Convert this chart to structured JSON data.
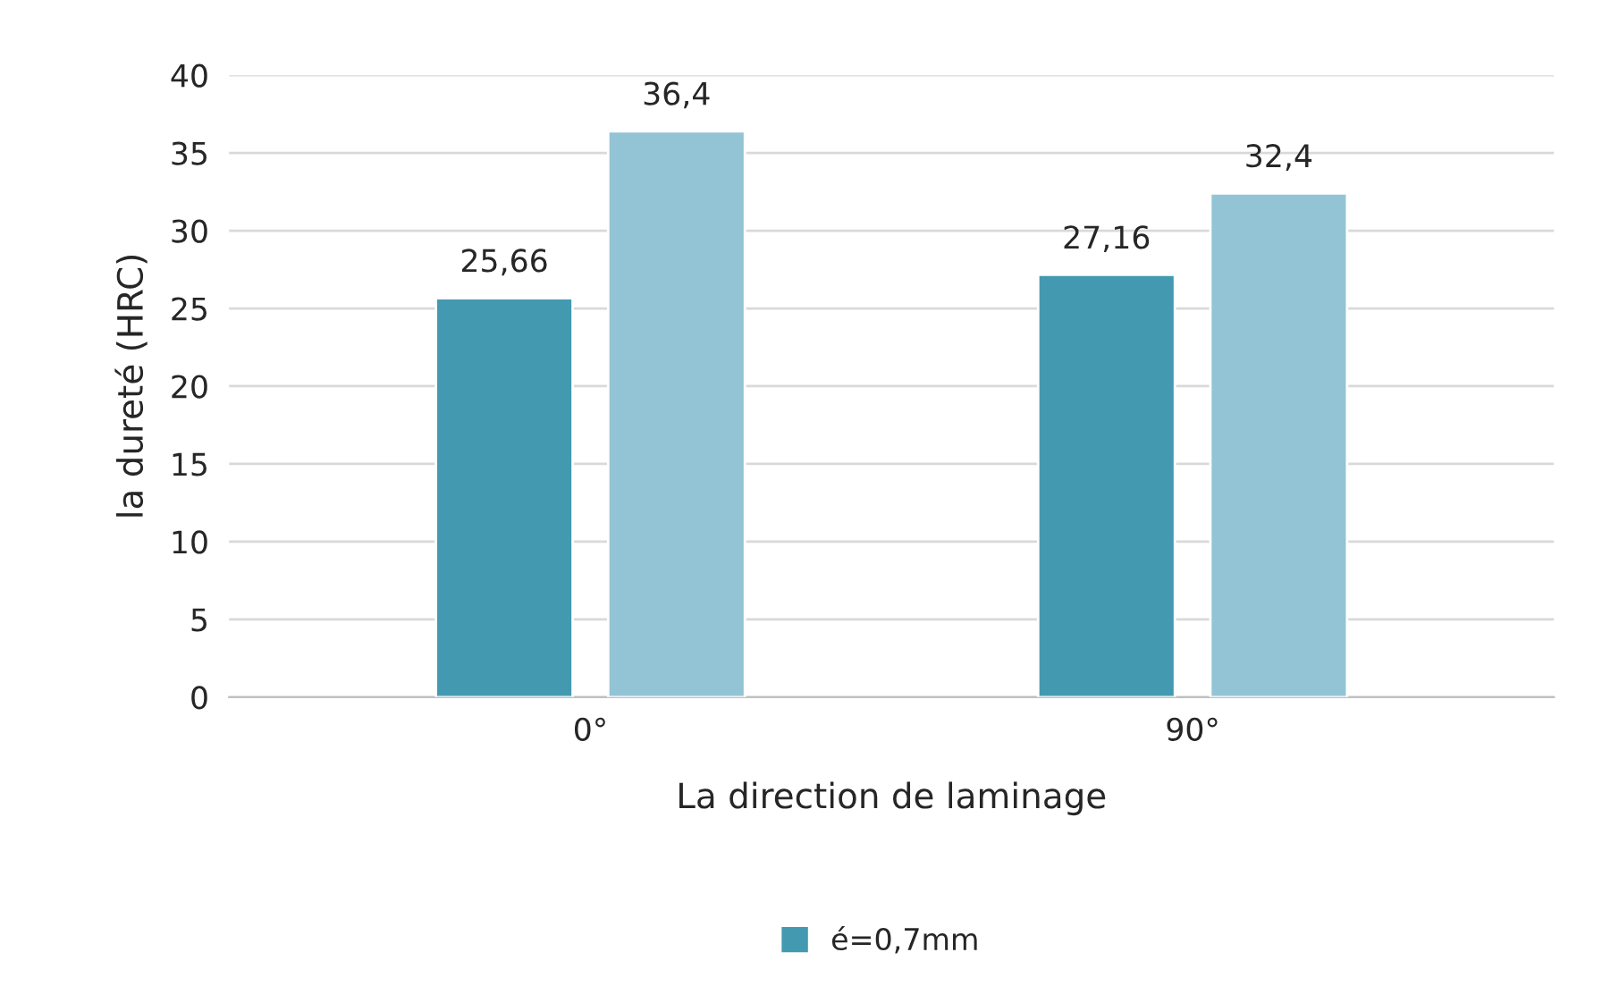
{
  "chart_data": {
    "type": "bar",
    "xlabel": "La direction de laminage",
    "ylabel": "la dureté (HRC)",
    "categories": [
      "0°",
      "90°"
    ],
    "series": [
      {
        "name": "é=0,7mm",
        "color": "#4399b0",
        "values": [
          25.66,
          27.16
        ],
        "value_labels": [
          "25,66",
          "27,16"
        ]
      },
      {
        "color": "#93c4d5",
        "values": [
          36.4,
          32.4
        ],
        "value_labels": [
          "36,4",
          "32,4"
        ]
      }
    ],
    "ylim": [
      0,
      40
    ],
    "yticks": [
      0,
      5,
      10,
      15,
      20,
      25,
      30,
      35,
      40
    ],
    "grid": "y",
    "legend": "bottom"
  }
}
